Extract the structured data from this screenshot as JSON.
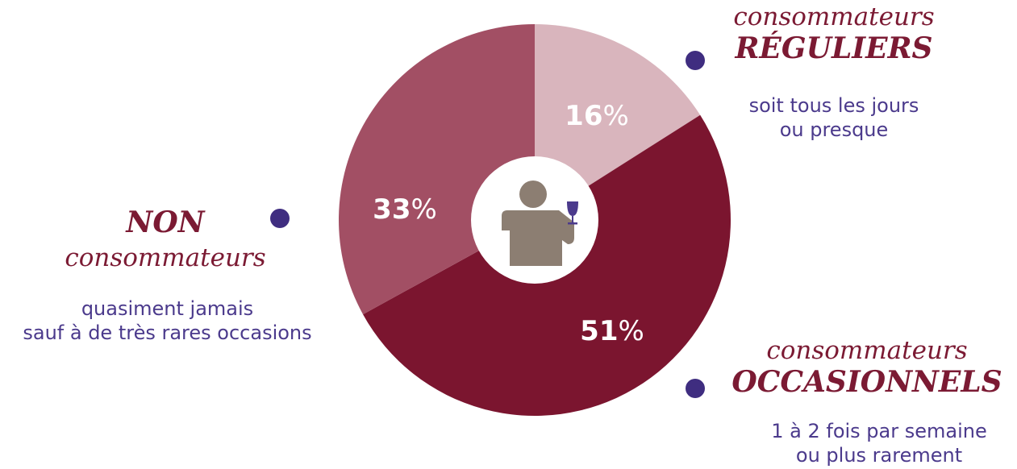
{
  "chart_data": {
    "type": "pie",
    "style": "donut",
    "legend": "outside labels",
    "slices": [
      {
        "id": "reguliers",
        "value": 16,
        "value_label": "16",
        "unit": "%",
        "color": "#d9b5bd",
        "label_line1": "consommateurs",
        "label_line2": "RÉGULIERS",
        "description": [
          "soit tous les jours",
          "ou presque"
        ]
      },
      {
        "id": "occasionnels",
        "value": 51,
        "value_label": "51",
        "unit": "%",
        "color": "#7b152f",
        "label_line1": "consommateurs",
        "label_line2": "OCCASIONNELS",
        "description": [
          "1 à 2 fois par semaine",
          "ou plus rarement"
        ]
      },
      {
        "id": "non",
        "value": 33,
        "value_label": "33",
        "unit": "%",
        "color": "#a24f64",
        "label_line1": "NON",
        "label_line2": "consommateurs",
        "description": [
          "quasiment jamais",
          "sauf à de très rares occasions"
        ]
      }
    ],
    "center_icon": "person-with-wine-glass-icon",
    "colors": {
      "dot": "#3f2d80",
      "category_text": "#7b1a33",
      "description_text": "#4b3a8c",
      "center_circle": "#ffffff",
      "icon": "#8c7e72",
      "glass": "#4b3a8c"
    }
  }
}
